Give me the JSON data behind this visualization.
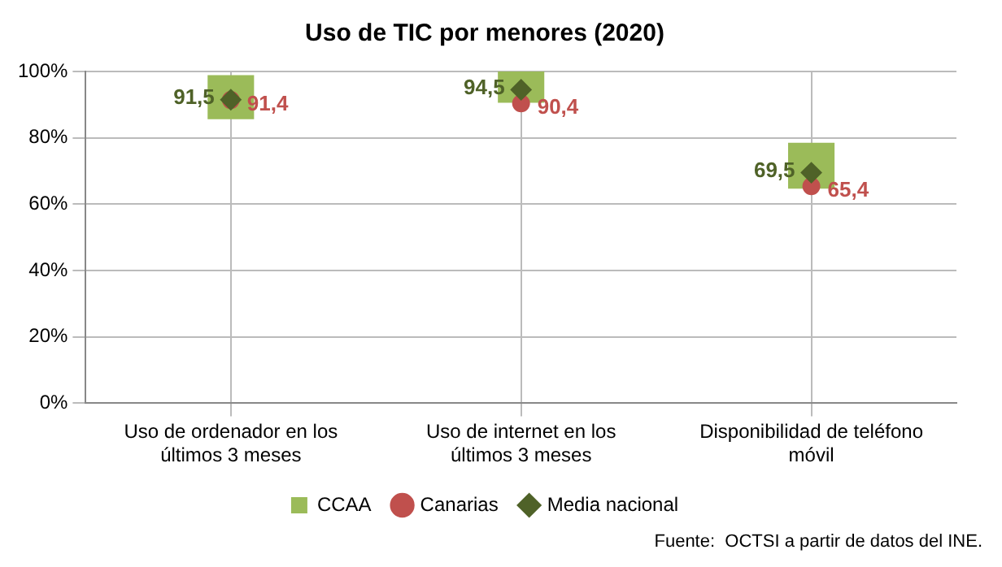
{
  "chart_data": {
    "type": "scatter",
    "title": "Uso de TIC por menores (2020)",
    "categories": [
      "Uso de ordenador en los últimos 3 meses",
      "Uso de internet en los últimos 3 meses",
      "Disponibilidad de teléfono móvil"
    ],
    "series": [
      {
        "name": "CCAA",
        "type": "bar",
        "color": "#9bbb59",
        "base": [
          85.6,
          90.6,
          64.7
        ],
        "values": [
          13.3,
          9.4,
          13.8
        ]
      },
      {
        "name": "Canarias",
        "marker": "circle",
        "color": "#c0504d",
        "values": [
          91.4,
          90.4,
          65.4
        ],
        "value_labels": [
          "91,4",
          "90,4",
          "65,4"
        ]
      },
      {
        "name": "Media nacional",
        "marker": "diamond",
        "color": "#4f6228",
        "values": [
          91.5,
          94.5,
          69.5
        ],
        "value_labels": [
          "91,5",
          "94,5",
          "69,5"
        ]
      }
    ],
    "ylim": [
      0,
      100
    ],
    "yticks": [
      {
        "value": 0,
        "label": "0%"
      },
      {
        "value": 20,
        "label": "20%"
      },
      {
        "value": 40,
        "label": "40%"
      },
      {
        "value": 60,
        "label": "60%"
      },
      {
        "value": 80,
        "label": "80%"
      },
      {
        "value": 100,
        "label": "100%"
      }
    ],
    "grid": true,
    "legend": "bottom",
    "annotations": [
      "Fuente:  OCTSI a partir de datos del INE."
    ]
  }
}
